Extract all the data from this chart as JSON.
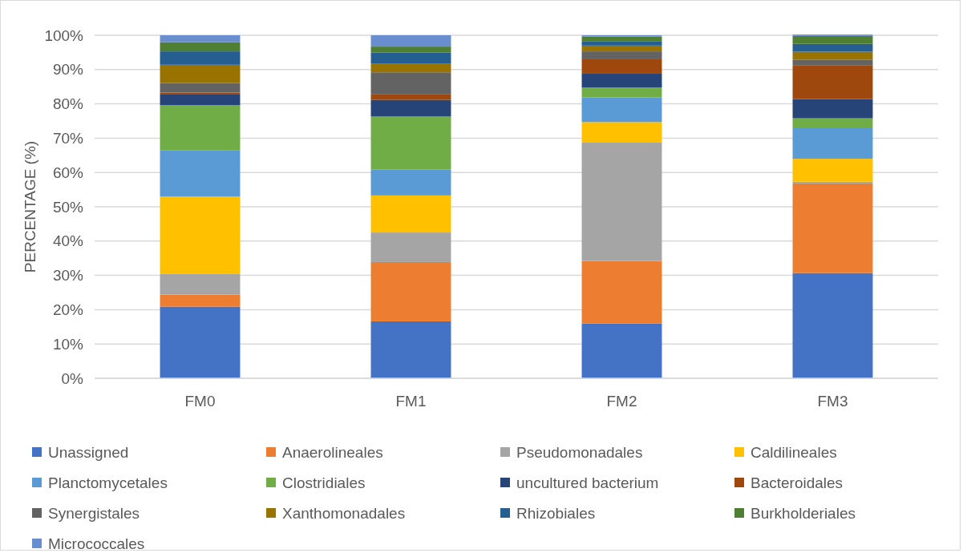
{
  "chart_data": {
    "type": "bar",
    "stacked": true,
    "ylabel": "PERCENTAGE (%)",
    "categories": [
      "FM0",
      "FM1",
      "FM2",
      "FM3"
    ],
    "ylim": [
      0,
      100
    ],
    "yticks": [
      {
        "value": 0,
        "label": "0%"
      },
      {
        "value": 10,
        "label": "10%"
      },
      {
        "value": 20,
        "label": "20%"
      },
      {
        "value": 30,
        "label": "30%"
      },
      {
        "value": 40,
        "label": "40%"
      },
      {
        "value": 50,
        "label": "50%"
      },
      {
        "value": 60,
        "label": "60%"
      },
      {
        "value": 70,
        "label": "70%"
      },
      {
        "value": 80,
        "label": "80%"
      },
      {
        "value": 90,
        "label": "90%"
      },
      {
        "value": 100,
        "label": "100%"
      }
    ],
    "grid": "y",
    "legend": "bottom",
    "series": [
      {
        "name": "Unassigned",
        "color": "#4472c4",
        "values": [
          20.9,
          16.6,
          16.0,
          30.7
        ]
      },
      {
        "name": "Anaerolineales",
        "color": "#ed7d31",
        "values": [
          3.5,
          17.3,
          18.2,
          26.1
        ]
      },
      {
        "name": "Pseudomonadales",
        "color": "#a5a5a5",
        "values": [
          6.0,
          8.6,
          34.5,
          0.5
        ]
      },
      {
        "name": "Caldilineales",
        "color": "#ffc000",
        "values": [
          22.6,
          10.8,
          6.0,
          6.7
        ]
      },
      {
        "name": "Planctomycetales",
        "color": "#5b9bd5",
        "values": [
          13.4,
          7.6,
          7.2,
          8.9
        ]
      },
      {
        "name": "Clostridiales",
        "color": "#70ad47",
        "values": [
          13.2,
          15.4,
          2.9,
          2.9
        ]
      },
      {
        "name": "uncultured bacterium",
        "color": "#264478",
        "values": [
          3.3,
          4.9,
          4.0,
          5.6
        ]
      },
      {
        "name": "Bacteroidales",
        "color": "#9e480e",
        "values": [
          0.4,
          1.7,
          4.2,
          9.9
        ]
      },
      {
        "name": "Synergistales",
        "color": "#636363",
        "values": [
          2.8,
          6.3,
          2.3,
          1.6
        ]
      },
      {
        "name": "Xanthomonadales",
        "color": "#997300",
        "values": [
          5.3,
          2.6,
          1.7,
          2.3
        ]
      },
      {
        "name": "Rhizobiales",
        "color": "#255e91",
        "values": [
          3.9,
          3.2,
          1.3,
          2.3
        ]
      },
      {
        "name": "Burkholderiales",
        "color": "#4e7f33",
        "values": [
          2.7,
          1.7,
          1.3,
          2.3
        ]
      },
      {
        "name": "Micrococcales",
        "color": "#698ed0",
        "values": [
          2.0,
          3.3,
          0.4,
          0.4
        ]
      }
    ]
  }
}
